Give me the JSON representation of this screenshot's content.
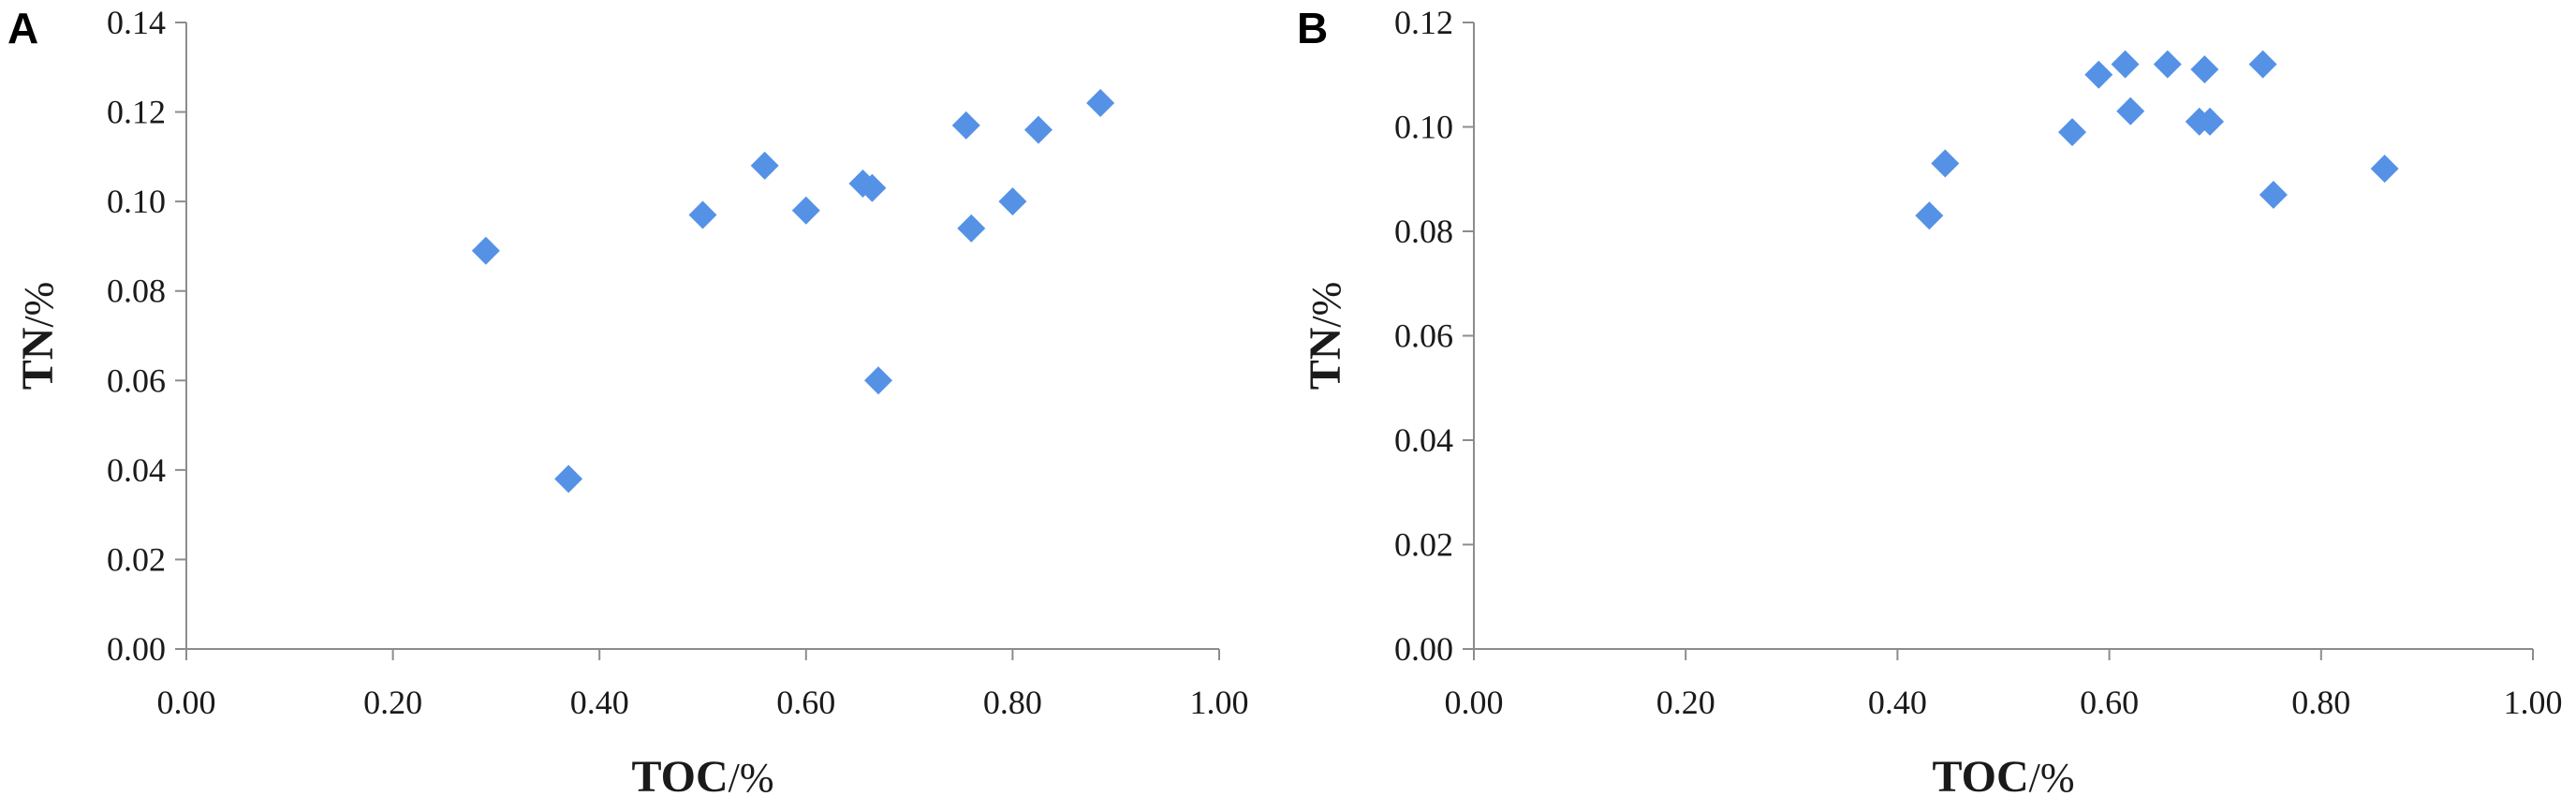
{
  "colors": {
    "marker": "#5592e6",
    "axis": "#8c8c8c",
    "text": "#1a1a1a"
  },
  "chart_data": [
    {
      "type": "scatter",
      "panel_label": "A",
      "xlabel": {
        "main": "TOC",
        "unit": "/%"
      },
      "ylabel": {
        "main": "TN",
        "unit": "/%"
      },
      "xlim": [
        0,
        1
      ],
      "ylim": [
        0,
        0.14
      ],
      "xticks": [
        0.0,
        0.2,
        0.4,
        0.6,
        0.8,
        1.0
      ],
      "yticks": [
        0.0,
        0.02,
        0.04,
        0.06,
        0.08,
        0.1,
        0.12,
        0.14
      ],
      "x_tick_labels": [
        "0.00",
        "0.20",
        "0.40",
        "0.60",
        "0.80",
        "1.00"
      ],
      "y_tick_labels": [
        "0.00",
        "0.02",
        "0.04",
        "0.06",
        "0.08",
        "0.10",
        "0.12",
        "0.14"
      ],
      "grid": false,
      "legend": "none",
      "marker": "diamond",
      "points": [
        {
          "x": 0.29,
          "y": 0.089
        },
        {
          "x": 0.37,
          "y": 0.038
        },
        {
          "x": 0.5,
          "y": 0.097
        },
        {
          "x": 0.56,
          "y": 0.108
        },
        {
          "x": 0.6,
          "y": 0.098
        },
        {
          "x": 0.655,
          "y": 0.104
        },
        {
          "x": 0.664,
          "y": 0.103
        },
        {
          "x": 0.67,
          "y": 0.06
        },
        {
          "x": 0.755,
          "y": 0.117
        },
        {
          "x": 0.76,
          "y": 0.094
        },
        {
          "x": 0.8,
          "y": 0.1
        },
        {
          "x": 0.825,
          "y": 0.116
        },
        {
          "x": 0.885,
          "y": 0.122
        }
      ]
    },
    {
      "type": "scatter",
      "panel_label": "B",
      "xlabel": {
        "main": "TOC",
        "unit": "/%"
      },
      "ylabel": {
        "main": "TN",
        "unit": "/%"
      },
      "xlim": [
        0,
        1
      ],
      "ylim": [
        0,
        0.12
      ],
      "xticks": [
        0.0,
        0.2,
        0.4,
        0.6,
        0.8,
        1.0
      ],
      "yticks": [
        0.0,
        0.02,
        0.04,
        0.06,
        0.08,
        0.1,
        0.12
      ],
      "x_tick_labels": [
        "0.00",
        "0.20",
        "0.40",
        "0.60",
        "0.80",
        "1.00"
      ],
      "y_tick_labels": [
        "0.00",
        "0.02",
        "0.04",
        "0.06",
        "0.08",
        "0.10",
        "0.12"
      ],
      "grid": false,
      "legend": "none",
      "marker": "diamond",
      "points": [
        {
          "x": 0.43,
          "y": 0.083
        },
        {
          "x": 0.445,
          "y": 0.093
        },
        {
          "x": 0.565,
          "y": 0.099
        },
        {
          "x": 0.59,
          "y": 0.11
        },
        {
          "x": 0.615,
          "y": 0.112
        },
        {
          "x": 0.62,
          "y": 0.103
        },
        {
          "x": 0.655,
          "y": 0.112
        },
        {
          "x": 0.685,
          "y": 0.101
        },
        {
          "x": 0.69,
          "y": 0.111
        },
        {
          "x": 0.695,
          "y": 0.101
        },
        {
          "x": 0.745,
          "y": 0.112
        },
        {
          "x": 0.755,
          "y": 0.087
        },
        {
          "x": 0.86,
          "y": 0.092
        }
      ]
    }
  ]
}
